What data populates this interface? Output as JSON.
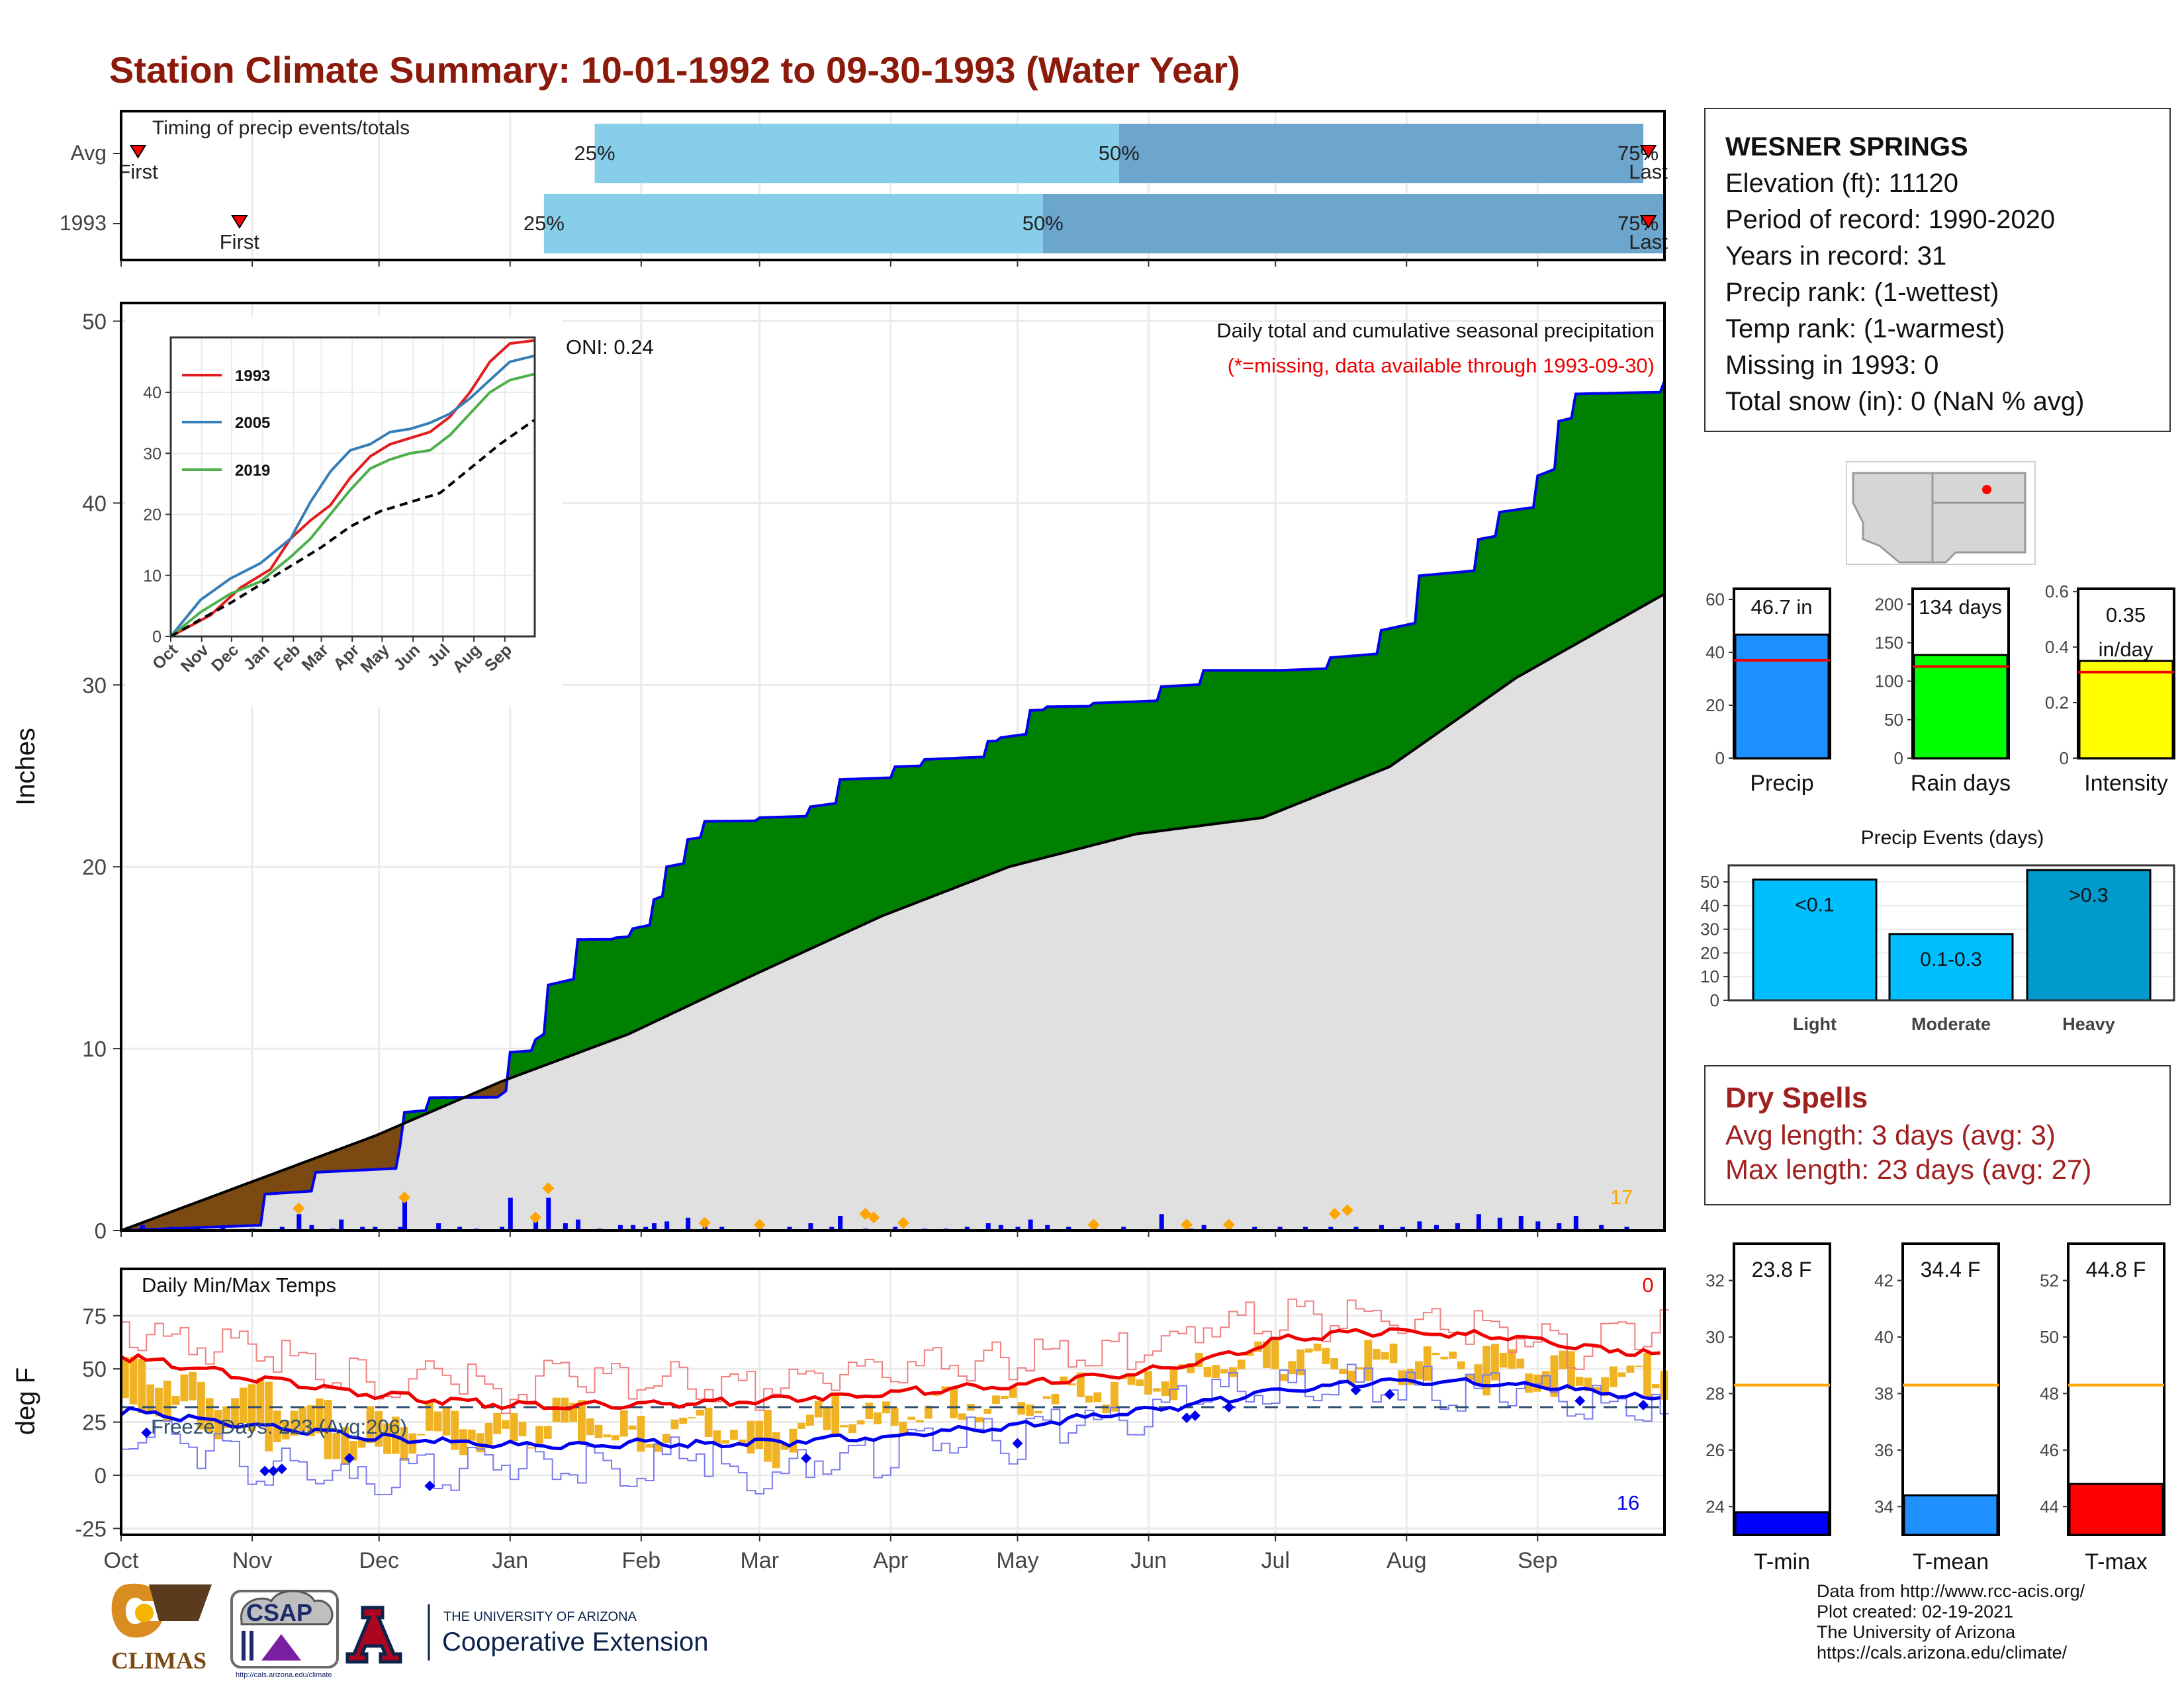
{
  "title": "Station Climate Summary: 10-01-1992 to 09-30-1993 (Water Year)",
  "colors": {
    "title": "#8B1A0A",
    "cumulative_1993": "#008000",
    "cumulative_line": "#0000EE",
    "deficit": "#7B4A12",
    "average_fill": "#E0E0E0",
    "daily_bar": "#0000EE",
    "event_marker": "#FFA500",
    "tmax": "#EE0000",
    "tmin": "#0000EE",
    "temp_anomaly": "#F0B323",
    "dry_spells": "#A02020"
  },
  "timing_panel": {
    "label": "Timing of precip events/totals",
    "rows": [
      {
        "name": "Avg",
        "first_label": "First",
        "last_label": "Last",
        "first_day": 4,
        "last_day": 364,
        "p25": 112,
        "p50": 236,
        "p75": 360,
        "p25_label": "25%",
        "p50_label": "50%",
        "p75_label": "75%"
      },
      {
        "name": "1993",
        "first_label": "First",
        "last_label": "Last",
        "first_day": 28,
        "last_day": 364,
        "p25": 100,
        "p50": 218,
        "p75": 366,
        "p25_label": "25%",
        "p50_label": "50%",
        "p75_label": "75%"
      }
    ]
  },
  "station_info": {
    "name": "WESNER SPRINGS",
    "lines": [
      "Elevation (ft): 11120",
      "Period of record: 1990-2020",
      "Years in record: 31",
      "Precip rank:  (1-wettest)",
      "Temp rank:  (1-warmest)",
      "Missing in 1993: 0",
      "Total snow (in): 0 (NaN % avg)"
    ]
  },
  "dry_spells": {
    "title": "Dry Spells",
    "avg_line": "Avg length: 3 days (avg: 3)",
    "max_line": "Max length: 23 days (avg: 27)"
  },
  "month_labels": [
    "Oct",
    "Nov",
    "Dec",
    "Jan",
    "Feb",
    "Mar",
    "Apr",
    "May",
    "Jun",
    "Jul",
    "Aug",
    "Sep"
  ],
  "precip_panel": {
    "ylabel": "Inches",
    "annotation": "Daily total and cumulative seasonal precipitation",
    "missing_note": "(*=missing, data available through 1993-09-30)",
    "oni": "ONI: 0.24",
    "corner_count": "17"
  },
  "temp_panel": {
    "label": "Daily Min/Max Temps",
    "ylabel": "deg F",
    "freeze": "Freeze Days: 223 (Avg:206)",
    "count_top": "0",
    "count_bottom": "16"
  },
  "footer": {
    "lines": [
      "Data from http://www.rcc-acis.org/",
      "Plot created: 02-19-2021",
      "The University of Arizona",
      "https://cals.arizona.edu/climate/"
    ],
    "logos": {
      "climas": "CLIMAS",
      "csap": "CSAP",
      "csap_url": "http://cals.arizona.edu/climate",
      "ua_small": "THE UNIVERSITY OF ARIZONA",
      "ua_large": "Cooperative Extension"
    }
  },
  "chart_data": [
    {
      "type": "area",
      "title": "Daily total and cumulative seasonal precipitation",
      "ylabel": "Inches",
      "x_unit": "day of water year (0 = Oct 1)",
      "ylim": [
        0,
        51
      ],
      "yticks": [
        0,
        10,
        20,
        30,
        40,
        50
      ],
      "grid": true,
      "cumulative_1993": {
        "x": [
          0,
          34,
          46,
          66,
          67,
          73,
          90,
          92,
          98,
          101,
          108,
          117,
          121,
          126,
          129,
          134,
          138,
          151,
          163,
          170,
          183,
          190,
          205,
          208,
          215,
          219,
          230,
          246,
          256,
          274,
          286,
          298,
          307,
          321,
          326,
          335,
          340,
          344,
          365
        ],
        "y": [
          0,
          2.0,
          3.2,
          4.7,
          6.5,
          7.3,
          7.5,
          9.8,
          10.5,
          13.5,
          16.0,
          16.1,
          16.6,
          18.2,
          20.0,
          21.5,
          22.5,
          22.7,
          23.3,
          24.8,
          25.5,
          25.9,
          26.9,
          27.1,
          28.6,
          28.8,
          29.0,
          29.9,
          30.8,
          30.8,
          31.5,
          33.0,
          36.0,
          38.0,
          39.5,
          41.5,
          44.5,
          46.0,
          46.7
        ]
      },
      "average_cumulative": {
        "x": [
          0,
          30,
          60,
          90,
          120,
          150,
          180,
          210,
          240,
          270,
          300,
          330,
          365
        ],
        "y": [
          0,
          2.6,
          5.2,
          8.2,
          10.8,
          14.1,
          17.3,
          20.0,
          21.8,
          22.7,
          25.5,
          30.4,
          35.0
        ]
      },
      "daily_precip": {
        "x": [
          5,
          12,
          18,
          24,
          31,
          38,
          42,
          45,
          50,
          52,
          57,
          60,
          66,
          67,
          75,
          80,
          84,
          90,
          92,
          98,
          101,
          105,
          108,
          113,
          118,
          121,
          124,
          126,
          129,
          134,
          138,
          142,
          151,
          158,
          163,
          168,
          170,
          176,
          183,
          190,
          195,
          200,
          205,
          208,
          212,
          215,
          219,
          224,
          230,
          237,
          246,
          253,
          256,
          262,
          268,
          274,
          280,
          286,
          292,
          298,
          303,
          307,
          311,
          316,
          321,
          326,
          331,
          335,
          340,
          344,
          350,
          356
        ],
        "y": [
          0.3,
          0.2,
          0.1,
          0.2,
          0.1,
          0.2,
          0.9,
          0.3,
          0.1,
          0.6,
          0.2,
          0.2,
          0.2,
          1.6,
          0.4,
          0.2,
          0.1,
          0.2,
          1.8,
          0.5,
          1.8,
          0.4,
          0.6,
          0.1,
          0.3,
          0.3,
          0.2,
          0.4,
          0.5,
          0.7,
          0.3,
          0.2,
          0.2,
          0.2,
          0.4,
          0.2,
          0.8,
          0.1,
          0.2,
          0.1,
          0.1,
          0.2,
          0.4,
          0.3,
          0.2,
          0.6,
          0.3,
          0.2,
          0.3,
          0.2,
          0.9,
          0.1,
          0.3,
          0.1,
          0.2,
          0.2,
          0.2,
          0.2,
          0.2,
          0.3,
          0.2,
          0.5,
          0.3,
          0.4,
          0.9,
          0.7,
          0.8,
          0.5,
          0.4,
          0.8,
          0.3,
          0.2
        ]
      },
      "event_markers": {
        "x": [
          42,
          67,
          98,
          101,
          138,
          151,
          176,
          178,
          185,
          230,
          252,
          262,
          290,
          287
        ],
        "y": [
          1.0,
          1.6,
          0.5,
          2.1,
          0.2,
          0.1,
          0.7,
          0.5,
          0.2,
          0.1,
          0.1,
          0.1,
          0.9,
          0.7
        ]
      }
    },
    {
      "type": "line",
      "title": "",
      "series_labels": [
        "1993",
        "2005",
        "2019"
      ],
      "xticks": [
        "Oct",
        "Nov",
        "Dec",
        "Jan",
        "Feb",
        "Mar",
        "Apr",
        "May",
        "Jun",
        "Jul",
        "Aug",
        "Sep"
      ],
      "yticks": [
        0,
        10,
        20,
        30,
        40
      ],
      "ylim": [
        0,
        49
      ],
      "x_unit": "day of water year",
      "series": [
        {
          "name": "1993",
          "color": "#E41A1C",
          "x": [
            0,
            40,
            70,
            100,
            120,
            140,
            160,
            180,
            200,
            220,
            240,
            260,
            280,
            300,
            320,
            340,
            365
          ],
          "y": [
            0,
            3.5,
            8,
            11,
            16,
            19,
            21.5,
            26,
            29.5,
            31.5,
            32.5,
            33.5,
            36,
            40,
            45,
            48,
            48.5
          ]
        },
        {
          "name": "2005",
          "color": "#377EB8",
          "x": [
            0,
            30,
            60,
            90,
            120,
            140,
            160,
            180,
            200,
            220,
            240,
            260,
            280,
            300,
            320,
            340,
            365
          ],
          "y": [
            0,
            6,
            9.5,
            12,
            16,
            22,
            27,
            30.5,
            31.5,
            33.5,
            34,
            35,
            36.5,
            39,
            42,
            45,
            46
          ]
        },
        {
          "name": "2019",
          "color": "#4DAF4A",
          "x": [
            0,
            30,
            60,
            90,
            120,
            140,
            160,
            180,
            200,
            220,
            240,
            260,
            280,
            300,
            320,
            340,
            365
          ],
          "y": [
            0,
            4,
            7,
            9,
            13,
            16,
            20,
            24,
            27.5,
            29,
            30,
            30.5,
            33,
            36.5,
            40,
            42,
            43
          ]
        },
        {
          "name": "average",
          "color": "#000000",
          "dashed": true,
          "x": [
            0,
            30,
            60,
            90,
            120,
            150,
            180,
            210,
            240,
            270,
            300,
            330,
            365
          ],
          "y": [
            0,
            2.8,
            5.5,
            8.5,
            11.5,
            14.5,
            18,
            20.5,
            22,
            23.5,
            27.5,
            31.5,
            35.5
          ]
        }
      ]
    },
    {
      "type": "line",
      "title": "Daily Min/Max Temps",
      "ylabel": "deg F",
      "ylim": [
        -28,
        97
      ],
      "yticks": [
        -25,
        0,
        25,
        50,
        75
      ],
      "freeze_line": 32,
      "x_unit": "day of water year",
      "avg_tmax": {
        "x": [
          0,
          30,
          60,
          90,
          120,
          150,
          180,
          210,
          240,
          260,
          275,
          290,
          305,
          320,
          335,
          350,
          365
        ],
        "y": [
          56,
          46,
          38,
          33,
          33,
          35,
          39,
          42,
          48,
          56,
          64,
          67,
          67,
          66,
          63,
          60,
          56
        ]
      },
      "avg_tmin": {
        "x": [
          0,
          30,
          60,
          90,
          120,
          150,
          180,
          210,
          240,
          260,
          275,
          290,
          305,
          320,
          335,
          350,
          365
        ],
        "y": [
          30,
          24,
          18,
          14,
          15,
          15,
          18,
          23,
          30,
          35,
          40,
          43,
          44,
          44,
          42,
          39,
          35
        ]
      },
      "daily_tmax": {
        "x": [
          0,
          15,
          30,
          45,
          60,
          75,
          90,
          105,
          120,
          135,
          150,
          165,
          180,
          195,
          210,
          225,
          240,
          255,
          270,
          285,
          300,
          315,
          330,
          345,
          360,
          365
        ],
        "y": [
          70,
          62,
          58,
          52,
          42,
          48,
          38,
          50,
          42,
          45,
          40,
          50,
          46,
          55,
          52,
          60,
          58,
          70,
          75,
          72,
          73,
          68,
          66,
          58,
          70,
          72
        ]
      },
      "daily_tmin": {
        "x": [
          0,
          15,
          30,
          45,
          60,
          75,
          90,
          105,
          120,
          135,
          150,
          165,
          180,
          195,
          210,
          225,
          240,
          255,
          270,
          285,
          300,
          315,
          330,
          345,
          360,
          365
        ],
        "y": [
          18,
          15,
          5,
          2,
          -5,
          2,
          5,
          8,
          0,
          12,
          -8,
          10,
          8,
          20,
          15,
          25,
          28,
          38,
          40,
          42,
          43,
          40,
          42,
          35,
          30,
          28
        ]
      },
      "freeze_markers": {
        "x": [
          6,
          34,
          36,
          38,
          54,
          73,
          162,
          212,
          252,
          254,
          262,
          292,
          300,
          345,
          360
        ],
        "y": [
          20,
          2,
          2,
          3,
          8,
          -5,
          8,
          15,
          27,
          28,
          32,
          40,
          38,
          35,
          33
        ]
      }
    },
    {
      "type": "bar",
      "categories": [
        "Precip",
        "Rain days",
        "Intensity"
      ],
      "values": [
        46.7,
        134,
        0.35
      ],
      "averages": [
        37,
        119,
        0.31
      ],
      "value_labels": [
        "46.7 in",
        "134 days",
        "0.35 in/day"
      ],
      "ylims": [
        [
          0,
          64
        ],
        [
          0,
          220
        ],
        [
          0,
          0.61
        ]
      ],
      "yticks": [
        [
          0,
          20,
          40,
          60
        ],
        [
          0,
          50,
          100,
          150,
          200
        ],
        [
          0.0,
          0.2,
          0.4,
          0.6
        ]
      ],
      "colors": [
        "#1E90FF",
        "#00FF00",
        "#FFFF00"
      ]
    },
    {
      "type": "bar",
      "title": "Precip Events (days)",
      "categories": [
        "Light",
        "Moderate",
        "Heavy"
      ],
      "values": [
        51,
        28,
        55
      ],
      "value_labels": [
        "<0.1",
        "0.1-0.3",
        ">0.3"
      ],
      "ylim": [
        0,
        57
      ],
      "yticks": [
        0,
        10,
        20,
        30,
        40,
        50
      ],
      "colors": [
        "#00BFFF",
        "#00BFFF",
        "#009ACD"
      ]
    },
    {
      "type": "bar",
      "categories": [
        "T-min",
        "T-mean",
        "T-max"
      ],
      "values": [
        23.8,
        34.4,
        44.8
      ],
      "averages": [
        28.3,
        38.3,
        48.3
      ],
      "value_labels": [
        "23.8 F",
        "34.4 F",
        "44.8 F"
      ],
      "ylims": [
        [
          23,
          33.3
        ],
        [
          33,
          43.3
        ],
        [
          43,
          53.3
        ]
      ],
      "yticks": [
        [
          24,
          26,
          28,
          30,
          32
        ],
        [
          34,
          36,
          38,
          40,
          42
        ],
        [
          44,
          46,
          48,
          50,
          52
        ]
      ],
      "colors": [
        "#0000FF",
        "#1E90FF",
        "#FF0000"
      ]
    }
  ]
}
